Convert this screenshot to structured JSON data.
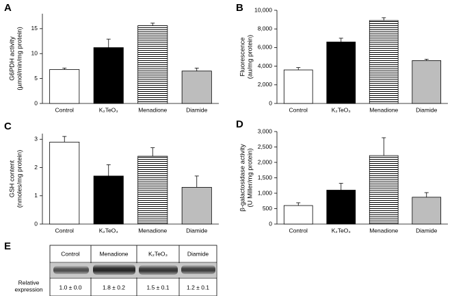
{
  "chart_data": [
    {
      "type": "bar",
      "panel": "A",
      "ylabel": [
        "G6PDH activity",
        "(µmol/min/mg protein)"
      ],
      "categories": [
        "Control",
        "K₂TeO₃",
        "Menadione",
        "Diamide"
      ],
      "values": [
        6.8,
        11.2,
        15.6,
        6.5
      ],
      "errors": [
        0.3,
        1.7,
        0.5,
        0.6
      ],
      "fills": [
        "#ffffff",
        "#000000",
        "stripes",
        "#bdbdbd"
      ],
      "ylim": [
        0,
        18
      ],
      "yticks": [
        0,
        5,
        10,
        15
      ]
    },
    {
      "type": "bar",
      "panel": "B",
      "ylabel": [
        "Fluorescence",
        "(au/mg protein)"
      ],
      "categories": [
        "Control",
        "K₂TeO₃",
        "Menadione",
        "Diamide"
      ],
      "values": [
        3600,
        6600,
        8900,
        4600
      ],
      "errors": [
        250,
        400,
        300,
        150
      ],
      "fills": [
        "#ffffff",
        "#000000",
        "stripes",
        "#bdbdbd"
      ],
      "ylim": [
        0,
        10000
      ],
      "yticks": [
        0,
        {
          "value": 2000,
          "label": "2,000"
        },
        {
          "value": 4000,
          "label": "4,000"
        },
        {
          "value": 6000,
          "label": "6,000"
        },
        {
          "value": 8000,
          "label": "8,000"
        },
        {
          "value": 10000,
          "label": "10,000"
        }
      ]
    },
    {
      "type": "bar",
      "panel": "C",
      "ylabel": [
        "GSH content",
        "(nmoles/mg protein)"
      ],
      "categories": [
        "Control",
        "K₂TeO₃",
        "Menadione",
        "Diamide"
      ],
      "values": [
        2.9,
        1.7,
        2.4,
        1.3
      ],
      "errors": [
        0.2,
        0.4,
        0.3,
        0.4
      ],
      "fills": [
        "#ffffff",
        "#000000",
        "stripes",
        "#bdbdbd"
      ],
      "ylim": [
        0,
        3.2
      ],
      "yticks": [
        0,
        1,
        2,
        3
      ]
    },
    {
      "type": "bar",
      "panel": "D",
      "ylabel": [
        "β-galactosidase activity",
        "(U Miller/mg protein)"
      ],
      "categories": [
        "Control",
        "K₂TeO₃",
        "Menadione",
        "Diamide"
      ],
      "values": [
        600,
        1100,
        2220,
        870
      ],
      "errors": [
        90,
        220,
        580,
        150
      ],
      "fills": [
        "#ffffff",
        "#000000",
        "stripes",
        "#bdbdbd"
      ],
      "ylim": [
        0,
        3000
      ],
      "yticks": [
        0,
        500,
        {
          "value": 1000,
          "label": "1,000"
        },
        {
          "value": 1500,
          "label": "1,500"
        },
        {
          "value": 2000,
          "label": "2,000"
        },
        {
          "value": 2500,
          "label": "2,500"
        },
        {
          "value": 3000,
          "label": "3,000"
        }
      ]
    }
  ],
  "blot": {
    "panel": "E",
    "columns": [
      "Control",
      "Menadione",
      "K₂TeO₃",
      "Diamide"
    ],
    "row_label": [
      "Relative",
      "expression"
    ],
    "values": [
      "1.0 ± 0.0",
      "1.8 ± 0.2",
      "1.5 ± 0.1",
      "1.2 ± 0.1"
    ]
  }
}
